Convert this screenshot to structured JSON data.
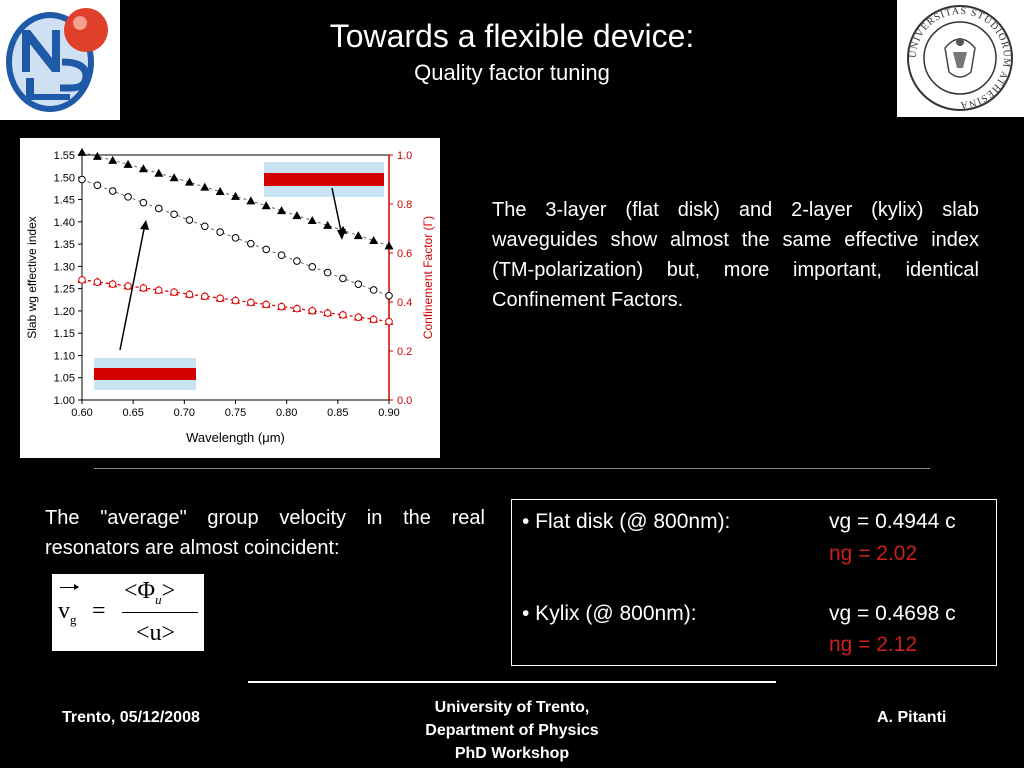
{
  "header": {
    "title": "Towards a flexible device:",
    "subtitle": "Quality factor tuning"
  },
  "logos": {
    "left": "NLS",
    "right": "UNIVERSITAS STUDIORUM ATHESINA"
  },
  "chart_data": {
    "type": "scatter",
    "xlabel_prefix": "Wavelength (",
    "xlabel_mu": "μ",
    "xlabel_suffix": "m)",
    "ylabel": "Slab wg effective index",
    "y2label": "Confinement Factor (Γ)",
    "xlim": [
      0.6,
      0.9
    ],
    "ylim": [
      1.0,
      1.55
    ],
    "y2lim": [
      0.0,
      1.0
    ],
    "x_ticks": [
      "0.60",
      "0.65",
      "0.70",
      "0.75",
      "0.80",
      "0.85",
      "0.90"
    ],
    "y_ticks": [
      "1.00",
      "1.05",
      "1.10",
      "1.15",
      "1.20",
      "1.25",
      "1.30",
      "1.35",
      "1.40",
      "1.45",
      "1.50",
      "1.55"
    ],
    "y2_ticks": [
      "0.0",
      "0.2",
      "0.4",
      "0.6",
      "0.8",
      "1.0"
    ],
    "series": [
      {
        "marker": "filled-triangle",
        "color": "#000000",
        "axis": "left",
        "x": [
          0.6,
          0.615,
          0.63,
          0.645,
          0.66,
          0.675,
          0.69,
          0.705,
          0.72,
          0.735,
          0.75,
          0.765,
          0.78,
          0.795,
          0.81,
          0.825,
          0.84,
          0.855,
          0.87,
          0.885,
          0.9
        ],
        "y": [
          1.556,
          1.547,
          1.538,
          1.529,
          1.519,
          1.509,
          1.499,
          1.489,
          1.478,
          1.468,
          1.457,
          1.447,
          1.436,
          1.425,
          1.414,
          1.403,
          1.392,
          1.381,
          1.369,
          1.358,
          1.346
        ]
      },
      {
        "marker": "open-circle",
        "color": "#000000",
        "axis": "left",
        "x": [
          0.6,
          0.615,
          0.63,
          0.645,
          0.66,
          0.675,
          0.69,
          0.705,
          0.72,
          0.735,
          0.75,
          0.765,
          0.78,
          0.795,
          0.81,
          0.825,
          0.84,
          0.855,
          0.87,
          0.885,
          0.9
        ],
        "y": [
          1.495,
          1.482,
          1.469,
          1.456,
          1.443,
          1.43,
          1.417,
          1.404,
          1.39,
          1.377,
          1.364,
          1.351,
          1.338,
          1.325,
          1.312,
          1.299,
          1.286,
          1.273,
          1.26,
          1.247,
          1.234
        ]
      },
      {
        "marker": "filled-triangle",
        "color": "#dd0000",
        "axis": "right",
        "x": [
          0.6,
          0.615,
          0.63,
          0.645,
          0.66,
          0.675,
          0.69,
          0.705,
          0.72,
          0.735,
          0.75,
          0.765,
          0.78,
          0.795,
          0.81,
          0.825,
          0.84,
          0.855,
          0.87,
          0.885,
          0.9
        ],
        "y": [
          0.492,
          0.483,
          0.474,
          0.466,
          0.458,
          0.449,
          0.441,
          0.432,
          0.424,
          0.416,
          0.407,
          0.399,
          0.391,
          0.382,
          0.374,
          0.365,
          0.356,
          0.348,
          0.339,
          0.33,
          0.321
        ]
      },
      {
        "marker": "open-circle",
        "color": "#dd0000",
        "axis": "right",
        "x": [
          0.6,
          0.615,
          0.63,
          0.645,
          0.66,
          0.675,
          0.69,
          0.705,
          0.72,
          0.735,
          0.75,
          0.765,
          0.78,
          0.795,
          0.81,
          0.825,
          0.84,
          0.855,
          0.87,
          0.885,
          0.9
        ],
        "y": [
          0.49,
          0.481,
          0.473,
          0.465,
          0.457,
          0.448,
          0.44,
          0.431,
          0.423,
          0.415,
          0.406,
          0.398,
          0.39,
          0.381,
          0.373,
          0.364,
          0.355,
          0.347,
          0.338,
          0.329,
          0.32
        ]
      }
    ]
  },
  "description": "The 3-layer (flat disk) and 2-layer (kylix) slab waveguides show almost the same effective index (TM-polarization) but, more important, identical Confinement Factors.",
  "avg_text": "The \"average\" group velocity in the real resonators are almost coincident:",
  "formula": {
    "lhs": "v",
    "lhs_sub": "g",
    "eq": "=",
    "num_open": "<Φ",
    "num_sub": "u",
    "num_close": ">",
    "den": "<u>"
  },
  "velocities": [
    {
      "label": "• Flat disk (@ 800nm):",
      "vg": "vg = 0.4944 c",
      "ng": "ng = 2.02"
    },
    {
      "label": "• Kylix (@ 800nm):",
      "vg": "vg = 0.4698 c",
      "ng": "ng = 2.12"
    }
  ],
  "footer": {
    "left": "Trento, 05/12/2008",
    "center_line1": "University of Trento,",
    "center_line2": "Department of Physics",
    "center_line3": "PhD Workshop",
    "right": "A. Pitanti"
  }
}
